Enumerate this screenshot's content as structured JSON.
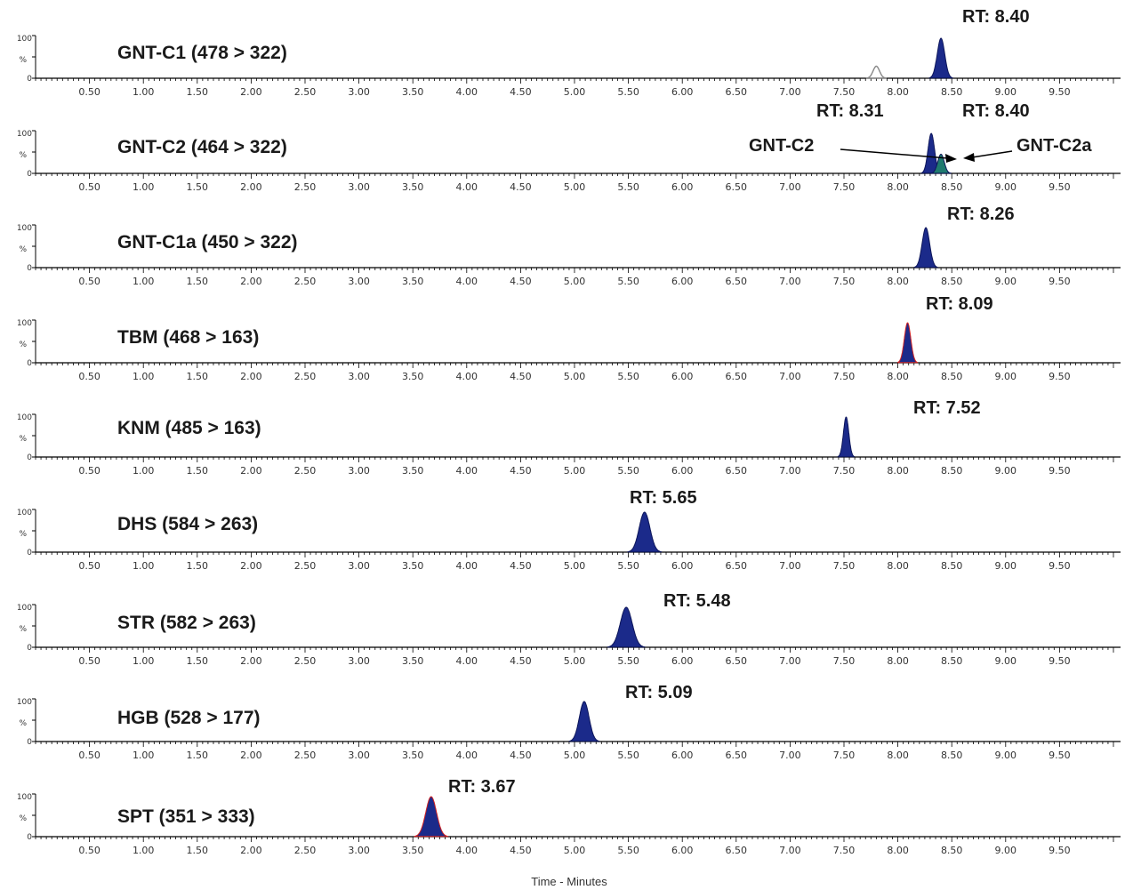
{
  "chart_data": {
    "type": "line",
    "xlabel": "Time - Minutes",
    "xlim": [
      0,
      10
    ],
    "x_ticks": [
      "0.50",
      "1.00",
      "1.50",
      "2.00",
      "2.50",
      "3.00",
      "3.50",
      "4.00",
      "4.50",
      "5.00",
      "5.50",
      "6.00",
      "6.50",
      "7.00",
      "7.50",
      "8.00",
      "8.50",
      "9.00",
      "9.50"
    ],
    "y_ticks": [
      "100",
      "%",
      "0"
    ],
    "ylim": [
      0,
      100
    ],
    "colors": {
      "peak": "#1b2a8a",
      "peak_alt": "#1f7a6e",
      "peak_edge_red": "#d02020",
      "axis": "#000000"
    },
    "panels": [
      {
        "title": "GNT-C1 (478 > 322)",
        "rt_label": "RT: 8.40",
        "peaks": [
          {
            "rt": 8.4,
            "height": 100,
            "width": 0.035,
            "color": "peak"
          },
          {
            "rt": 7.8,
            "height": 30,
            "width": 0.03,
            "color": "outline"
          }
        ]
      },
      {
        "title": "GNT-C2 (464 > 322)",
        "rt_labels": [
          "RT: 8.31",
          "RT: 8.40"
        ],
        "annotations": [
          "GNT-C2",
          "GNT-C2a"
        ],
        "peaks": [
          {
            "rt": 8.31,
            "height": 100,
            "width": 0.03,
            "color": "peak"
          },
          {
            "rt": 8.4,
            "height": 48,
            "width": 0.03,
            "color": "peak_alt"
          }
        ]
      },
      {
        "title": "GNT-C1a (450 > 322)",
        "rt_label": "RT: 8.26",
        "peaks": [
          {
            "rt": 8.26,
            "height": 100,
            "width": 0.035,
            "color": "peak"
          }
        ]
      },
      {
        "title": "TBM (468 > 163)",
        "rt_label": "RT: 8.09",
        "peaks": [
          {
            "rt": 8.09,
            "height": 100,
            "width": 0.03,
            "color": "peak",
            "edge": "red"
          }
        ]
      },
      {
        "title": "KNM (485 > 163)",
        "rt_label": "RT: 7.52",
        "peaks": [
          {
            "rt": 7.52,
            "height": 100,
            "width": 0.025,
            "color": "peak"
          }
        ]
      },
      {
        "title": "DHS (584 > 263)",
        "rt_label": "RT: 5.65",
        "peaks": [
          {
            "rt": 5.65,
            "height": 100,
            "width": 0.05,
            "color": "peak"
          }
        ]
      },
      {
        "title": "STR (582 > 263)",
        "rt_label": "RT: 5.48",
        "peaks": [
          {
            "rt": 5.48,
            "height": 100,
            "width": 0.055,
            "color": "peak"
          }
        ]
      },
      {
        "title": "HGB (528 > 177)",
        "rt_label": "RT: 5.09",
        "peaks": [
          {
            "rt": 5.09,
            "height": 100,
            "width": 0.045,
            "color": "peak"
          }
        ]
      },
      {
        "title": "SPT (351 > 333)",
        "rt_label": "RT: 3.67",
        "peaks": [
          {
            "rt": 3.67,
            "height": 100,
            "width": 0.05,
            "color": "peak",
            "edge": "red"
          }
        ]
      }
    ]
  }
}
